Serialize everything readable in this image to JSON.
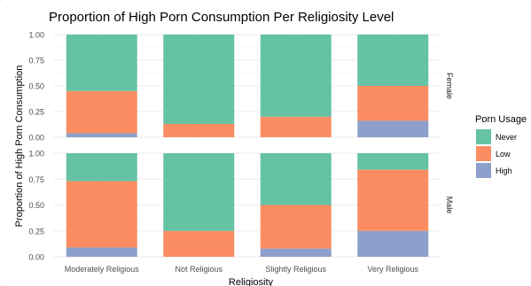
{
  "chart_data": {
    "type": "bar",
    "stacked": true,
    "title": "Proportion of High Porn Consumption Per Religiosity Level",
    "xlabel": "Religiosity",
    "ylabel": "Proportion of High Porn Consumption",
    "categories": [
      "Moderately Religious",
      "Not Religious",
      "Slightly Religious",
      "Very Religious"
    ],
    "ylim": [
      0,
      1
    ],
    "yticks": [
      "0.00",
      "0.25",
      "0.50",
      "0.75",
      "1.00"
    ],
    "legend": {
      "title": "Porn Usage",
      "position": "right",
      "entries": [
        "Never",
        "Low",
        "High"
      ]
    },
    "colors": {
      "Never": "#66c2a5",
      "Low": "#fc8d62",
      "High": "#8da0cb"
    },
    "grid": true,
    "facets": [
      {
        "label": "Female",
        "series": [
          {
            "name": "High",
            "values": [
              0.04,
              0.0,
              0.0,
              0.16
            ]
          },
          {
            "name": "Low",
            "values": [
              0.41,
              0.13,
              0.2,
              0.34
            ]
          },
          {
            "name": "Never",
            "values": [
              0.55,
              0.87,
              0.8,
              0.5
            ]
          }
        ]
      },
      {
        "label": "Male",
        "series": [
          {
            "name": "High",
            "values": [
              0.09,
              0.0,
              0.08,
              0.25
            ]
          },
          {
            "name": "Low",
            "values": [
              0.64,
              0.25,
              0.42,
              0.59
            ]
          },
          {
            "name": "Never",
            "values": [
              0.27,
              0.75,
              0.5,
              0.16
            ]
          }
        ]
      }
    ]
  }
}
